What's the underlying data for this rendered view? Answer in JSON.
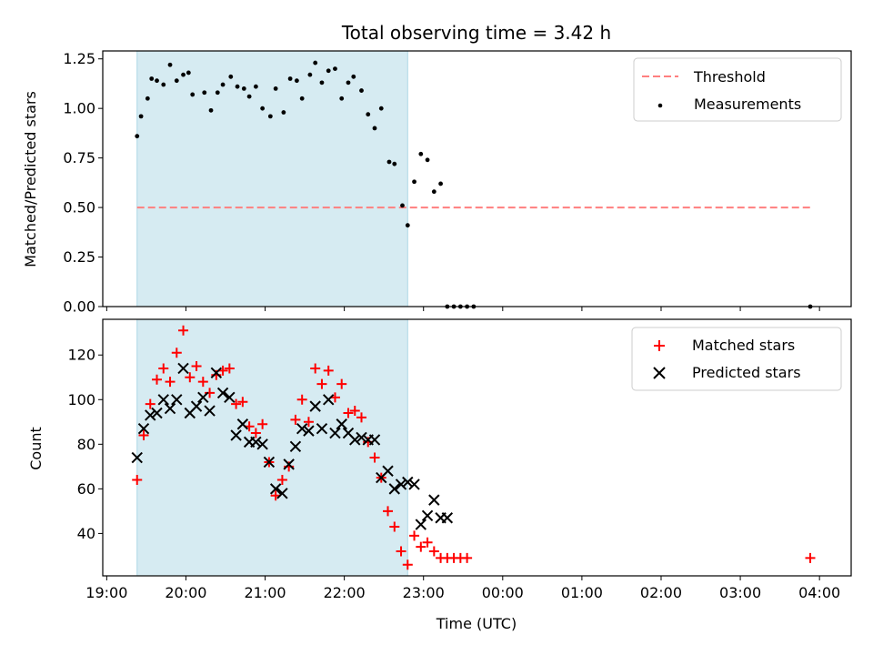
{
  "chart_data": [
    {
      "type": "scatter",
      "title": "Total observing time = 3.42 h",
      "xlabel": "",
      "ylabel": "Matched/Predicted stars",
      "xlim": [
        "18:57",
        "04:24"
      ],
      "ylim": [
        0.0,
        1.29
      ],
      "yticks": [
        "0.00",
        "0.25",
        "0.50",
        "0.75",
        "1.00",
        "1.25"
      ],
      "xticks_labeled": false,
      "grid": false,
      "legend_position": "top-right",
      "colors": {
        "threshold": "#ff7f7f",
        "measurements": "#000000",
        "observing_span": "#add8e6"
      },
      "observing_span": [
        "19:23",
        "22:48"
      ],
      "series": [
        {
          "name": "Threshold",
          "style": "dashed-line",
          "x": [
            "19:23",
            "03:53"
          ],
          "values": [
            0.5,
            0.5
          ]
        },
        {
          "name": "Measurements",
          "style": "dot",
          "x": [
            "19:23",
            "19:26",
            "19:31",
            "19:34",
            "19:38",
            "19:43",
            "19:48",
            "19:53",
            "19:58",
            "20:02",
            "20:05",
            "20:14",
            "20:19",
            "20:24",
            "20:28",
            "20:34",
            "20:39",
            "20:44",
            "20:48",
            "20:53",
            "20:58",
            "21:04",
            "21:08",
            "21:14",
            "21:19",
            "21:24",
            "21:28",
            "21:34",
            "21:38",
            "21:43",
            "21:48",
            "21:53",
            "21:58",
            "22:03",
            "22:07",
            "22:13",
            "22:18",
            "22:23",
            "22:28",
            "22:34",
            "22:38",
            "22:44",
            "22:48",
            "22:53",
            "22:58",
            "23:03",
            "23:08",
            "23:13",
            "23:18",
            "23:23",
            "23:28",
            "23:33",
            "23:38",
            "03:53"
          ],
          "values": [
            0.86,
            0.96,
            1.05,
            1.15,
            1.14,
            1.12,
            1.22,
            1.14,
            1.17,
            1.18,
            1.07,
            1.08,
            0.99,
            1.08,
            1.12,
            1.16,
            1.11,
            1.1,
            1.06,
            1.11,
            1.0,
            0.96,
            1.1,
            0.98,
            1.15,
            1.14,
            1.05,
            1.17,
            1.23,
            1.13,
            1.19,
            1.2,
            1.05,
            1.13,
            1.16,
            1.09,
            0.97,
            0.9,
            1.0,
            0.73,
            0.72,
            0.51,
            0.41,
            0.63,
            0.77,
            0.74,
            0.58,
            0.62,
            0.0,
            0.0,
            0.0,
            0.0,
            0.0,
            0.0
          ]
        }
      ]
    },
    {
      "type": "scatter",
      "title": "",
      "xlabel": "Time (UTC)",
      "ylabel": "Count",
      "xlim": [
        "18:57",
        "04:24"
      ],
      "ylim": [
        21,
        136
      ],
      "yticks": [
        "40",
        "60",
        "80",
        "100",
        "120"
      ],
      "xticks": [
        "19:00",
        "20:00",
        "21:00",
        "22:00",
        "23:00",
        "00:00",
        "01:00",
        "02:00",
        "03:00",
        "04:00"
      ],
      "grid": false,
      "legend_position": "top-right",
      "colors": {
        "matched": "#ff0000",
        "predicted": "#000000",
        "observing_span": "#add8e6"
      },
      "observing_span": [
        "19:23",
        "22:48"
      ],
      "series": [
        {
          "name": "Matched stars",
          "marker": "+",
          "x": [
            "19:23",
            "19:28",
            "19:33",
            "19:38",
            "19:43",
            "19:48",
            "19:53",
            "19:58",
            "20:03",
            "20:08",
            "20:13",
            "20:18",
            "20:23",
            "20:28",
            "20:33",
            "20:38",
            "20:43",
            "20:48",
            "20:53",
            "20:58",
            "21:03",
            "21:08",
            "21:13",
            "21:18",
            "21:23",
            "21:28",
            "21:33",
            "21:38",
            "21:43",
            "21:48",
            "21:53",
            "21:58",
            "22:03",
            "22:08",
            "22:13",
            "22:18",
            "22:23",
            "22:28",
            "22:33",
            "22:38",
            "22:43",
            "22:48",
            "22:53",
            "22:58",
            "23:03",
            "23:08",
            "23:13",
            "23:18",
            "23:23",
            "23:28",
            "23:33",
            "03:53"
          ],
          "values": [
            64,
            84,
            98,
            109,
            114,
            108,
            121,
            131,
            110,
            115,
            108,
            103,
            111,
            113,
            114,
            98,
            99,
            88,
            85,
            89,
            72,
            57,
            64,
            70,
            91,
            100,
            90,
            114,
            107,
            113,
            101,
            107,
            94,
            95,
            92,
            81,
            74,
            65,
            50,
            43,
            32,
            26,
            39,
            34,
            36,
            32,
            29,
            29,
            29,
            29,
            29,
            29
          ]
        },
        {
          "name": "Predicted stars",
          "marker": "x",
          "x": [
            "19:23",
            "19:28",
            "19:33",
            "19:38",
            "19:43",
            "19:48",
            "19:53",
            "19:58",
            "20:03",
            "20:08",
            "20:13",
            "20:18",
            "20:23",
            "20:28",
            "20:33",
            "20:38",
            "20:43",
            "20:48",
            "20:53",
            "20:58",
            "21:03",
            "21:08",
            "21:13",
            "21:18",
            "21:23",
            "21:28",
            "21:33",
            "21:38",
            "21:43",
            "21:48",
            "21:53",
            "21:58",
            "22:03",
            "22:08",
            "22:13",
            "22:18",
            "22:23",
            "22:28",
            "22:33",
            "22:38",
            "22:43",
            "22:48",
            "22:53",
            "22:58",
            "23:03",
            "23:08",
            "23:13",
            "23:18"
          ],
          "values": [
            74,
            87,
            93,
            94,
            100,
            96,
            100,
            114,
            94,
            97,
            101,
            95,
            112,
            103,
            101,
            84,
            89,
            81,
            81,
            80,
            72,
            60,
            58,
            71,
            79,
            87,
            86,
            97,
            87,
            100,
            85,
            89,
            85,
            82,
            83,
            82,
            82,
            65,
            68,
            60,
            62,
            63,
            62,
            44,
            48,
            55,
            47,
            47
          ]
        }
      ]
    }
  ]
}
